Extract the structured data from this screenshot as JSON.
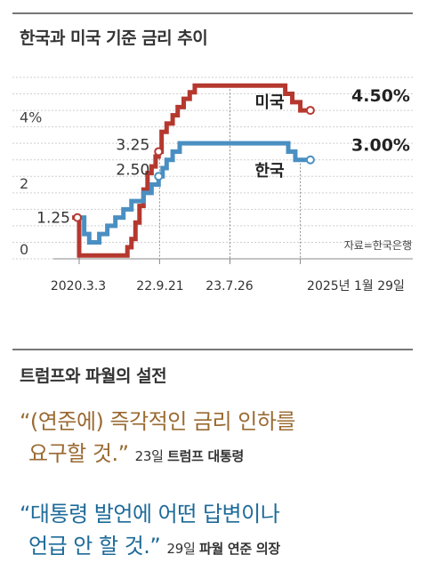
{
  "chart_data": {
    "type": "line",
    "title": "한국과 미국 기준 금리 추이",
    "ylim": [
      0,
      5.5
    ],
    "y_tick_labels": [
      {
        "value": 0,
        "label": "0"
      },
      {
        "value": 2,
        "label": "2"
      },
      {
        "value": 4,
        "label": "4%"
      }
    ],
    "x_tick_labels": [
      "2020.3.3",
      "22.9.21",
      "23.7.26",
      "2025년 1월 29일"
    ],
    "source": "자료=한국은행",
    "grid": "horizontal dashed",
    "series": [
      {
        "name": "미국",
        "color": "#b5382f",
        "end_label": "4.50%",
        "points": [
          [
            -0.07,
            1.25
          ],
          [
            0.0,
            1.25
          ],
          [
            0.0,
            0.1
          ],
          [
            0.05,
            0.1
          ],
          [
            0.1,
            0.1
          ],
          [
            0.2,
            0.1
          ],
          [
            0.28,
            0.1
          ],
          [
            0.36,
            0.1
          ],
          [
            0.44,
            0.1
          ],
          [
            0.48,
            0.35
          ],
          [
            0.52,
            0.6
          ],
          [
            0.56,
            1.1
          ],
          [
            0.6,
            1.6
          ],
          [
            0.64,
            2.1
          ],
          [
            0.68,
            2.6
          ],
          [
            0.72,
            2.8
          ],
          [
            0.76,
            3.1
          ],
          [
            0.79,
            3.25
          ],
          [
            0.82,
            3.85
          ],
          [
            0.87,
            4.1
          ],
          [
            0.93,
            4.35
          ],
          [
            0.98,
            4.6
          ],
          [
            1.04,
            4.85
          ],
          [
            1.1,
            5.05
          ],
          [
            1.15,
            5.25
          ],
          [
            1.5,
            5.25
          ],
          [
            1.75,
            5.25
          ],
          [
            1.98,
            5.25
          ],
          [
            2.05,
            5.0
          ],
          [
            2.12,
            4.75
          ],
          [
            2.2,
            4.5
          ],
          [
            2.3,
            4.5
          ]
        ]
      },
      {
        "name": "한국",
        "color": "#4a8fc2",
        "end_label": "3.00%",
        "points": [
          [
            -0.02,
            1.25
          ],
          [
            0.05,
            0.75
          ],
          [
            0.1,
            0.5
          ],
          [
            0.2,
            0.75
          ],
          [
            0.28,
            1.0
          ],
          [
            0.36,
            1.25
          ],
          [
            0.44,
            1.5
          ],
          [
            0.52,
            1.75
          ],
          [
            0.58,
            1.75
          ],
          [
            0.64,
            2.0
          ],
          [
            0.72,
            2.25
          ],
          [
            0.79,
            2.5
          ],
          [
            0.83,
            2.75
          ],
          [
            0.87,
            3.0
          ],
          [
            0.93,
            3.25
          ],
          [
            1.0,
            3.5
          ],
          [
            1.5,
            3.5
          ],
          [
            1.98,
            3.5
          ],
          [
            2.08,
            3.25
          ],
          [
            2.15,
            3.0
          ],
          [
            2.3,
            3.0
          ]
        ]
      }
    ],
    "annotations": [
      {
        "label": "1.25",
        "x": 0.0,
        "y": 1.25
      },
      {
        "label": "2.50",
        "x": 0.79,
        "y": 2.5
      },
      {
        "label": "3.25",
        "x": 0.79,
        "y": 3.25
      }
    ]
  },
  "section2_title": "트럼프와 파월의 설전",
  "quote1": {
    "line1": "“(연준에) 즉각적인 금리 인하를",
    "line2": "요구할 것.”",
    "attribution_date": "23일",
    "attribution_name": "트럼프 대통령"
  },
  "quote2": {
    "line1": "“대통령 발언에 어떤 답변이나",
    "line2": "언급 안 할 것.”",
    "attribution_date": "29일",
    "attribution_name": "파월 연준 의장"
  }
}
